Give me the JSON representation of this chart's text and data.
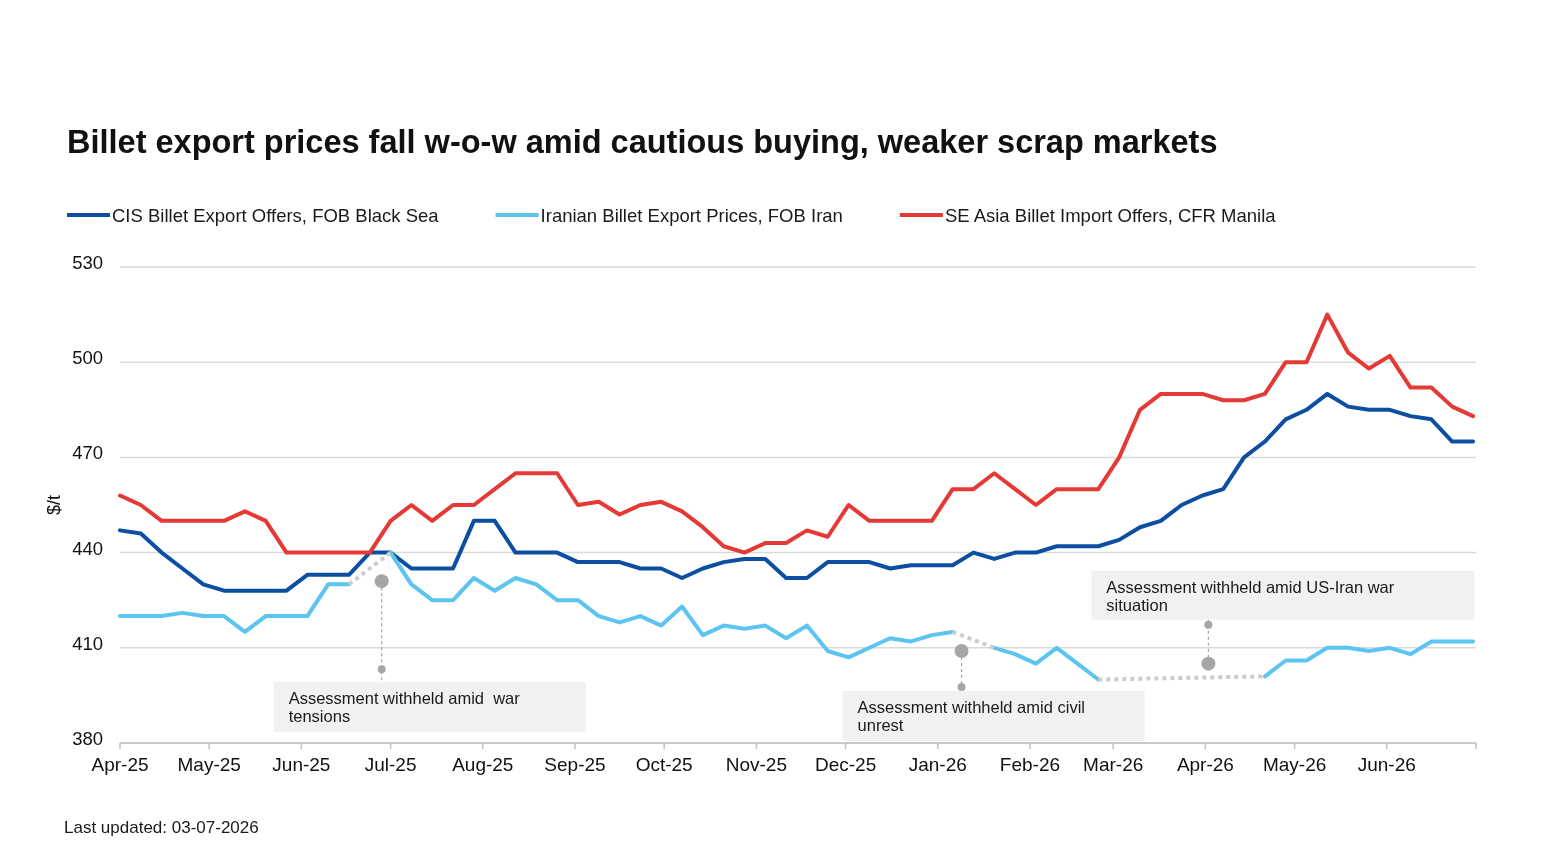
{
  "chart_data": {
    "type": "line",
    "title": "Billet export prices fall w-o-w amid cautious buying, weaker scrap markets",
    "ylabel": "$/t",
    "x": [
      "2025-04-01",
      "2025-04-08",
      "2025-04-15",
      "2025-04-22",
      "2025-04-29",
      "2025-05-06",
      "2025-05-13",
      "2025-05-20",
      "2025-05-27",
      "2025-06-03",
      "2025-06-10",
      "2025-06-17",
      "2025-06-24",
      "2025-07-01",
      "2025-07-08",
      "2025-07-15",
      "2025-07-22",
      "2025-07-29",
      "2025-08-05",
      "2025-08-12",
      "2025-08-19",
      "2025-08-26",
      "2025-09-02",
      "2025-09-09",
      "2025-09-16",
      "2025-09-23",
      "2025-09-30",
      "2025-10-07",
      "2025-10-14",
      "2025-10-21",
      "2025-10-28",
      "2025-11-04",
      "2025-11-11",
      "2025-11-18",
      "2025-11-25",
      "2025-12-02",
      "2025-12-09",
      "2025-12-16",
      "2025-12-23",
      "2025-12-30",
      "2026-01-06",
      "2026-01-13",
      "2026-01-20",
      "2026-01-27",
      "2026-02-03",
      "2026-02-10",
      "2026-02-17",
      "2026-02-24",
      "2026-03-03",
      "2026-03-10",
      "2026-03-17",
      "2026-03-24",
      "2026-03-31",
      "2026-04-07",
      "2026-04-14",
      "2026-04-21",
      "2026-04-28",
      "2026-05-05",
      "2026-05-12",
      "2026-05-19",
      "2026-05-26",
      "2026-06-02",
      "2026-06-09",
      "2026-06-16",
      "2026-06-23",
      "2026-06-30"
    ],
    "series": [
      {
        "name": "CIS Billet Export Offers, FOB Black Sea",
        "color": "#0b4ea2",
        "values": [
          447,
          446,
          440,
          435,
          430,
          428,
          428,
          428,
          428,
          433,
          433,
          433,
          440,
          440,
          435,
          435,
          435,
          450,
          450,
          440,
          440,
          440,
          437,
          437,
          437,
          435,
          435,
          432,
          435,
          437,
          438,
          438,
          432,
          432,
          437,
          437,
          437,
          435,
          436,
          436,
          436,
          440,
          438,
          440,
          440,
          442,
          442,
          442,
          444,
          448,
          450,
          455,
          458,
          460,
          470,
          475,
          482,
          485,
          490,
          486,
          485,
          485,
          483,
          482,
          475,
          475
        ]
      },
      {
        "name": "Iranian Billet Export Prices, FOB Iran",
        "color": "#5bc4f0",
        "values": [
          420,
          420,
          420,
          421,
          420,
          420,
          415,
          420,
          420,
          420,
          430,
          430,
          null,
          440,
          430,
          425,
          425,
          432,
          428,
          432,
          430,
          425,
          425,
          420,
          418,
          420,
          417,
          423,
          414,
          417,
          416,
          417,
          413,
          417,
          409,
          407,
          410,
          413,
          412,
          414,
          415,
          null,
          410,
          408,
          405,
          410,
          405,
          400,
          null,
          null,
          null,
          null,
          null,
          null,
          null,
          401,
          406,
          406,
          410,
          410,
          409,
          410,
          408,
          412,
          412,
          412
        ]
      },
      {
        "name": "SE Asia Billet Import Offers, CFR Manila",
        "color": "#e53935",
        "values": [
          458,
          455,
          450,
          450,
          450,
          450,
          453,
          450,
          440,
          440,
          440,
          440,
          440,
          450,
          455,
          450,
          455,
          455,
          460,
          465,
          465,
          465,
          455,
          456,
          452,
          455,
          456,
          453,
          448,
          442,
          440,
          443,
          443,
          447,
          445,
          455,
          450,
          450,
          450,
          450,
          460,
          460,
          465,
          460,
          455,
          460,
          460,
          460,
          470,
          485,
          490,
          490,
          490,
          488,
          488,
          490,
          500,
          500,
          515,
          503,
          498,
          502,
          492,
          492,
          486,
          483
        ]
      },
      {
        "color": "#cccccc",
        "line_style": "dotted",
        "x": [
          "2025-06-17",
          "2025-07-01"
        ],
        "values": [
          430,
          440
        ]
      },
      {
        "color": "#cccccc",
        "line_style": "dotted",
        "x": [
          "2026-01-06",
          "2026-01-20"
        ],
        "values": [
          415,
          410
        ]
      },
      {
        "color": "#cccccc",
        "line_style": "dotted",
        "x": [
          "2026-02-24",
          "2026-04-21"
        ],
        "values": [
          400,
          401
        ]
      }
    ],
    "xlim": [
      "2025-04-01",
      "2026-07-01"
    ],
    "xticks": [
      {
        "value": "2025-04-01",
        "label": "Apr-25"
      },
      {
        "value": "2025-05-01",
        "label": "May-25"
      },
      {
        "value": "2025-06-01",
        "label": "Jun-25"
      },
      {
        "value": "2025-07-01",
        "label": "Jul-25"
      },
      {
        "value": "2025-08-01",
        "label": "Aug-25"
      },
      {
        "value": "2025-09-01",
        "label": "Sep-25"
      },
      {
        "value": "2025-10-01",
        "label": "Oct-25"
      },
      {
        "value": "2025-11-01",
        "label": "Nov-25"
      },
      {
        "value": "2025-12-01",
        "label": "Dec-25"
      },
      {
        "value": "2026-01-01",
        "label": "Jan-26"
      },
      {
        "value": "2026-02-01",
        "label": "Feb-26"
      },
      {
        "value": "2026-03-01",
        "label": "Mar-26"
      },
      {
        "value": "2026-04-01",
        "label": "Apr-26"
      },
      {
        "value": "2026-05-01",
        "label": "May-26"
      },
      {
        "value": "2026-06-01",
        "label": "Jun-26"
      }
    ],
    "ylim": [
      380,
      530
    ],
    "yticks": [
      380,
      410,
      440,
      470,
      500,
      530
    ],
    "grid": "y",
    "legend": "top",
    "annotations": [
      {
        "text": "Assessment withheld amid  war tensions",
        "x": "2025-06-28",
        "y": 431
      },
      {
        "text": "Assessment withheld amid civil unrest",
        "x": "2026-01-09",
        "y": 409
      },
      {
        "text": "Assessment withheld amid US-Iran war situation",
        "x": "2026-04-02",
        "y": 405
      },
      "Last updated: 03-07-2026"
    ]
  }
}
